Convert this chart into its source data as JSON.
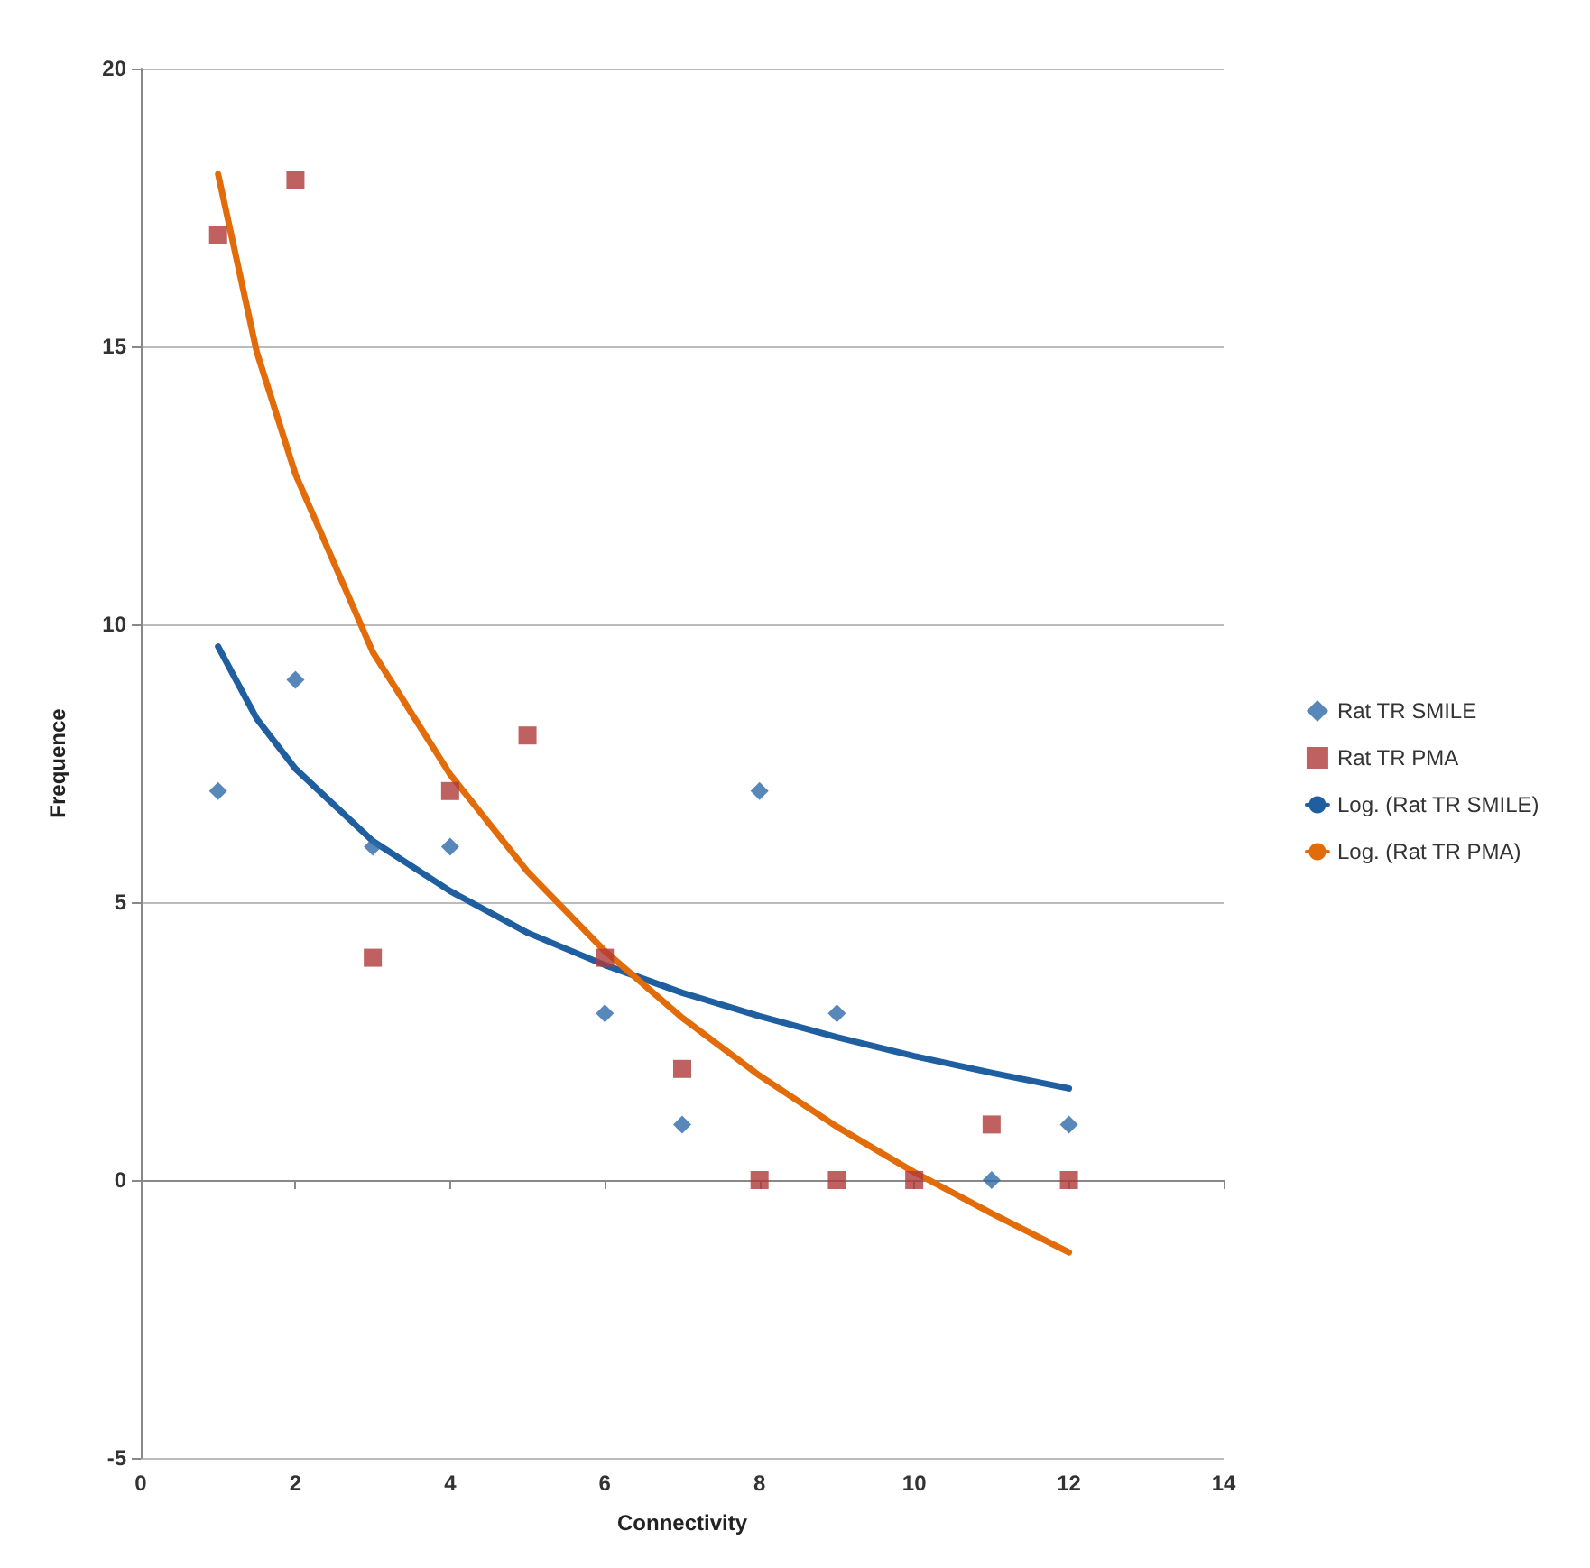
{
  "chart_data": {
    "type": "scatter",
    "xlabel": "Connectivity",
    "ylabel": "Frequence",
    "xlim": [
      0,
      14
    ],
    "xticks": [
      0,
      2,
      4,
      6,
      8,
      10,
      12,
      14
    ],
    "ylim": [
      -5,
      20
    ],
    "yticks": [
      -5,
      0,
      5,
      10,
      15,
      20
    ],
    "grid": "y",
    "legend": "right",
    "series": [
      {
        "name": "Rat TR SMILE",
        "marker": "diamond",
        "color": "#2e6aa8",
        "x": [
          1,
          2,
          3,
          4,
          6,
          7,
          8,
          9,
          11,
          12
        ],
        "values": [
          7,
          9,
          6,
          6,
          3,
          1,
          7,
          3,
          0,
          1
        ]
      },
      {
        "name": "Rat TR PMA",
        "marker": "square",
        "color": "#b03a3a",
        "x": [
          1,
          2,
          3,
          4,
          5,
          6,
          7,
          8,
          9,
          10,
          11,
          12
        ],
        "values": [
          17,
          18,
          4,
          7,
          8,
          4,
          2,
          0,
          0,
          0,
          1,
          0
        ]
      },
      {
        "name": "Log. (Rat TR SMILE)",
        "type": "line",
        "marker": "none",
        "line_style": "solid",
        "color": "#1f5fa0",
        "x": [
          1,
          1.5,
          2,
          3,
          4,
          5,
          6,
          7,
          8,
          9,
          10,
          11,
          12
        ],
        "values": [
          9.6,
          8.3,
          7.4,
          6.1,
          5.2,
          4.45,
          3.87,
          3.37,
          2.95,
          2.57,
          2.23,
          1.93,
          1.65
        ]
      },
      {
        "name": "Log. (Rat TR PMA)",
        "type": "line",
        "marker": "none",
        "line_style": "solid",
        "color": "#e36c0a",
        "x": [
          1,
          1.5,
          2,
          3,
          4,
          5,
          6,
          7,
          8,
          9,
          10,
          11,
          12
        ],
        "values": [
          18.1,
          14.9,
          12.7,
          9.5,
          7.3,
          5.55,
          4.12,
          2.92,
          1.88,
          0.96,
          0.14,
          -0.6,
          -1.3
        ]
      }
    ]
  }
}
